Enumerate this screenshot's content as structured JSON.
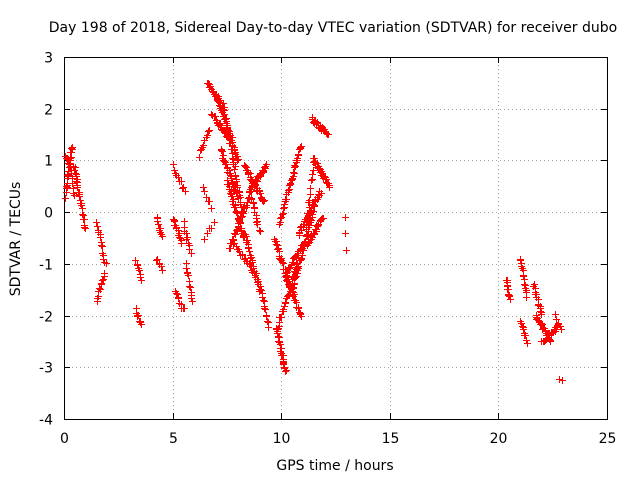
{
  "chart_data": {
    "type": "scatter",
    "title": "Day 198 of 2018, Sidereal Day-to-day VTEC variation (SDTVAR) for receiver dubo",
    "xlabel": "GPS time / hours",
    "ylabel": "SDTVAR / TECUs",
    "xlim": [
      0,
      25
    ],
    "ylim": [
      -4,
      3
    ],
    "xticks": [
      "0",
      "5",
      "10",
      "15",
      "20",
      "25"
    ],
    "yticks": [
      "-4",
      "-3",
      "-2",
      "-1",
      "0",
      "1",
      "2",
      "3"
    ],
    "grid": true,
    "marker": "+",
    "color": "#ff0000",
    "series": [
      {
        "name": "SDTVAR",
        "segments": [
          {
            "x": [
              0.05,
              0.35
            ],
            "y": [
              0.3,
              1.3
            ],
            "n": 25
          },
          {
            "x": [
              0.05,
              0.3
            ],
            "y": [
              1.1,
              0.9
            ],
            "n": 8
          },
          {
            "x": [
              0.3,
              0.45
            ],
            "y": [
              0.9,
              0.3
            ],
            "n": 8
          },
          {
            "x": [
              0.45,
              0.95
            ],
            "y": [
              0.9,
              -0.3
            ],
            "n": 28
          },
          {
            "x": [
              1.5,
              1.9
            ],
            "y": [
              -0.2,
              -1.0
            ],
            "n": 14
          },
          {
            "x": [
              1.5,
              1.85
            ],
            "y": [
              -1.7,
              -1.2
            ],
            "n": 12
          },
          {
            "x": [
              3.3,
              3.55
            ],
            "y": [
              -0.9,
              -1.3
            ],
            "n": 8
          },
          {
            "x": [
              3.3,
              3.55
            ],
            "y": [
              -1.9,
              -2.2
            ],
            "n": 10
          },
          {
            "x": [
              4.25,
              4.5
            ],
            "y": [
              -0.1,
              -0.5
            ],
            "n": 10
          },
          {
            "x": [
              4.25,
              4.5
            ],
            "y": [
              -0.9,
              -1.1
            ],
            "n": 6
          },
          {
            "x": [
              5.0,
              5.55
            ],
            "y": [
              0.9,
              0.4
            ],
            "n": 10
          },
          {
            "x": [
              5.0,
              5.4
            ],
            "y": [
              -0.1,
              -0.6
            ],
            "n": 14
          },
          {
            "x": [
              5.5,
              5.8
            ],
            "y": [
              -0.2,
              -0.8
            ],
            "n": 10
          },
          {
            "x": [
              5.1,
              5.5
            ],
            "y": [
              -1.5,
              -1.9
            ],
            "n": 10
          },
          {
            "x": [
              5.6,
              5.9
            ],
            "y": [
              -1.0,
              -1.7
            ],
            "n": 12
          },
          {
            "x": [
              6.2,
              6.7
            ],
            "y": [
              1.1,
              1.6
            ],
            "n": 10
          },
          {
            "x": [
              6.4,
              6.75
            ],
            "y": [
              0.5,
              0.1
            ],
            "n": 6
          },
          {
            "x": [
              6.45,
              6.9
            ],
            "y": [
              -0.5,
              -0.2
            ],
            "n": 5
          },
          {
            "x": [
              6.6,
              7.3
            ],
            "y": [
              2.5,
              2.0
            ],
            "n": 24
          },
          {
            "x": [
              6.8,
              7.5
            ],
            "y": [
              1.9,
              1.5
            ],
            "n": 20
          },
          {
            "x": [
              7.0,
              8.0
            ],
            "y": [
              2.3,
              1.0
            ],
            "n": 40
          },
          {
            "x": [
              7.3,
              8.2
            ],
            "y": [
              2.1,
              0.0
            ],
            "n": 40
          },
          {
            "x": [
              7.2,
              8.0
            ],
            "y": [
              1.2,
              0.3
            ],
            "n": 30
          },
          {
            "x": [
              7.5,
              8.3
            ],
            "y": [
              0.6,
              -0.5
            ],
            "n": 35
          },
          {
            "x": [
              7.6,
              8.6
            ],
            "y": [
              -0.7,
              0.4
            ],
            "n": 30
          },
          {
            "x": [
              8.3,
              9.2
            ],
            "y": [
              0.9,
              0.2
            ],
            "n": 35
          },
          {
            "x": [
              8.5,
              9.3
            ],
            "y": [
              0.4,
              0.9
            ],
            "n": 30
          },
          {
            "x": [
              7.8,
              8.8
            ],
            "y": [
              -0.6,
              -1.2
            ],
            "n": 20
          },
          {
            "x": [
              8.3,
              9.0
            ],
            "y": [
              -0.4,
              -1.5
            ],
            "n": 25
          },
          {
            "x": [
              8.6,
              9.0
            ],
            "y": [
              0.3,
              -0.4
            ],
            "n": 15
          },
          {
            "x": [
              9.0,
              9.4
            ],
            "y": [
              -1.4,
              -2.2
            ],
            "n": 15
          },
          {
            "x": [
              9.7,
              10.4
            ],
            "y": [
              -0.5,
              -1.5
            ],
            "n": 30
          },
          {
            "x": [
              9.75,
              10.2
            ],
            "y": [
              -2.2,
              -3.1
            ],
            "n": 30
          },
          {
            "x": [
              9.85,
              10.7
            ],
            "y": [
              -2.2,
              -1.0
            ],
            "n": 30
          },
          {
            "x": [
              10.2,
              10.9
            ],
            "y": [
              -1.2,
              -2.0
            ],
            "n": 25
          },
          {
            "x": [
              9.9,
              10.9
            ],
            "y": [
              -0.2,
              1.3
            ],
            "n": 40
          },
          {
            "x": [
              10.2,
              11.0
            ],
            "y": [
              -1.2,
              -0.6
            ],
            "n": 25
          },
          {
            "x": [
              10.5,
              11.5
            ],
            "y": [
              -1.5,
              0.1
            ],
            "n": 40
          },
          {
            "x": [
              10.8,
              11.8
            ],
            "y": [
              -0.4,
              0.4
            ],
            "n": 35
          },
          {
            "x": [
              11.2,
              11.9
            ],
            "y": [
              -0.6,
              -0.1
            ],
            "n": 25
          },
          {
            "x": [
              11.1,
              11.5
            ],
            "y": [
              -0.5,
              1.1
            ],
            "n": 20
          },
          {
            "x": [
              11.4,
              12.2
            ],
            "y": [
              1.8,
              1.5
            ],
            "n": 25
          },
          {
            "x": [
              11.5,
              12.2
            ],
            "y": [
              1.0,
              0.5
            ],
            "n": 25
          },
          {
            "x": [
              12.9,
              13.0
            ],
            "y": [
              -0.1,
              -0.7
            ],
            "n": 3
          },
          {
            "x": [
              20.35,
              20.5
            ],
            "y": [
              -1.3,
              -1.7
            ],
            "n": 12
          },
          {
            "x": [
              21.0,
              21.3
            ],
            "y": [
              -0.9,
              -1.6
            ],
            "n": 15
          },
          {
            "x": [
              21.0,
              21.3
            ],
            "y": [
              -2.1,
              -2.5
            ],
            "n": 10
          },
          {
            "x": [
              21.6,
              22.0
            ],
            "y": [
              -1.4,
              -2.0
            ],
            "n": 15
          },
          {
            "x": [
              21.7,
              22.4
            ],
            "y": [
              -2.0,
              -2.5
            ],
            "n": 25
          },
          {
            "x": [
              22.0,
              22.7
            ],
            "y": [
              -2.5,
              -2.2
            ],
            "n": 20
          },
          {
            "x": [
              22.6,
              22.9
            ],
            "y": [
              -2.0,
              -2.3
            ],
            "n": 6
          },
          {
            "x": [
              22.8,
              22.9
            ],
            "y": [
              -3.2,
              -3.2
            ],
            "n": 2
          }
        ]
      }
    ]
  }
}
